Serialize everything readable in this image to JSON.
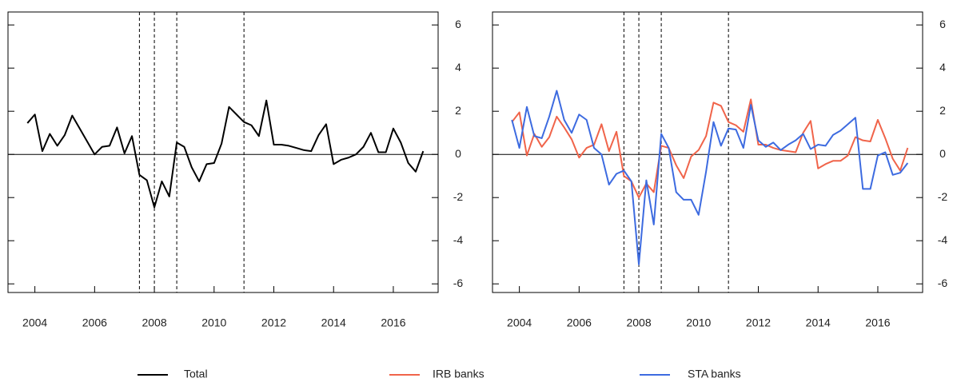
{
  "chart_data": [
    {
      "type": "line",
      "x": [
        2003.75,
        2004,
        2004.25,
        2004.5,
        2004.75,
        2005,
        2005.25,
        2005.5,
        2005.75,
        2006,
        2006.25,
        2006.5,
        2006.75,
        2007,
        2007.25,
        2007.5,
        2007.75,
        2008,
        2008.25,
        2008.5,
        2008.75,
        2009,
        2009.25,
        2009.5,
        2009.75,
        2010,
        2010.25,
        2010.5,
        2010.75,
        2011,
        2011.25,
        2011.5,
        2011.75,
        2012,
        2012.25,
        2012.5,
        2012.75,
        2013,
        2013.25,
        2013.5,
        2013.75,
        2014,
        2014.25,
        2014.5,
        2014.75,
        2015,
        2015.25,
        2015.5,
        2015.75,
        2016,
        2016.25,
        2016.5,
        2016.75,
        2017
      ],
      "series": [
        {
          "name": "Total",
          "color": "#000000",
          "values": [
            1.45,
            1.85,
            0.15,
            0.95,
            0.4,
            0.9,
            1.8,
            1.2,
            0.6,
            0.0,
            0.35,
            0.4,
            1.25,
            0.05,
            0.85,
            -0.95,
            -1.2,
            -2.45,
            -1.25,
            -1.95,
            0.55,
            0.35,
            -0.6,
            -1.25,
            -0.45,
            -0.4,
            0.5,
            2.2,
            1.85,
            1.5,
            1.35,
            0.85,
            2.5,
            0.45,
            0.45,
            0.4,
            0.3,
            0.2,
            0.15,
            0.9,
            1.4,
            -0.45,
            -0.25,
            -0.15,
            0.0,
            0.35,
            1.0,
            0.1,
            0.1,
            1.2,
            0.55,
            -0.4,
            -0.8,
            0.15
          ]
        }
      ],
      "xlim": [
        2003.1,
        2017.5
      ],
      "ylim": [
        -6.4,
        6.6
      ],
      "xticks": [
        2004,
        2006,
        2008,
        2010,
        2012,
        2014,
        2016
      ],
      "yticks": [
        -6,
        -4,
        -2,
        0,
        2,
        4,
        6
      ],
      "vlines": [
        2007.5,
        2008.0,
        2008.75,
        2011.0
      ],
      "hlines": [
        0
      ]
    },
    {
      "type": "line",
      "x": [
        2003.75,
        2004,
        2004.25,
        2004.5,
        2004.75,
        2005,
        2005.25,
        2005.5,
        2005.75,
        2006,
        2006.25,
        2006.5,
        2006.75,
        2007,
        2007.25,
        2007.5,
        2007.75,
        2008,
        2008.25,
        2008.5,
        2008.75,
        2009,
        2009.25,
        2009.5,
        2009.75,
        2010,
        2010.25,
        2010.5,
        2010.75,
        2011,
        2011.25,
        2011.5,
        2011.75,
        2012,
        2012.25,
        2012.5,
        2012.75,
        2013,
        2013.25,
        2013.5,
        2013.75,
        2014,
        2014.25,
        2014.5,
        2014.75,
        2015,
        2015.25,
        2015.5,
        2015.75,
        2016,
        2016.25,
        2016.5,
        2016.75,
        2017
      ],
      "series": [
        {
          "name": "IRB banks",
          "color": "#f0644a",
          "values": [
            1.5,
            1.95,
            -0.05,
            0.95,
            0.35,
            0.8,
            1.75,
            1.25,
            0.7,
            -0.15,
            0.3,
            0.45,
            1.4,
            0.15,
            1.05,
            -1.0,
            -1.25,
            -2.0,
            -1.35,
            -1.75,
            0.4,
            0.3,
            -0.5,
            -1.1,
            -0.1,
            0.2,
            0.85,
            2.4,
            2.25,
            1.5,
            1.35,
            1.05,
            2.55,
            0.45,
            0.45,
            0.3,
            0.2,
            0.15,
            0.1,
            1.0,
            1.55,
            -0.65,
            -0.45,
            -0.3,
            -0.3,
            -0.05,
            0.8,
            0.65,
            0.6,
            1.6,
            0.75,
            -0.2,
            -0.75,
            0.3
          ]
        },
        {
          "name": "STA banks",
          "color": "#3d6be0",
          "values": [
            1.6,
            0.3,
            2.2,
            0.85,
            0.75,
            1.75,
            2.95,
            1.6,
            1.0,
            1.85,
            1.6,
            0.3,
            0.0,
            -1.4,
            -0.9,
            -0.75,
            -1.25,
            -5.1,
            -1.2,
            -3.25,
            0.95,
            0.3,
            -1.75,
            -2.1,
            -2.1,
            -2.8,
            -0.8,
            1.5,
            0.4,
            1.2,
            1.15,
            0.3,
            2.3,
            0.65,
            0.35,
            0.55,
            0.2,
            0.45,
            0.65,
            0.95,
            0.25,
            0.45,
            0.4,
            0.9,
            1.1,
            1.4,
            1.7,
            -1.6,
            -1.6,
            -0.05,
            0.1,
            -0.95,
            -0.85,
            -0.4
          ]
        }
      ],
      "xlim": [
        2003.1,
        2017.5
      ],
      "ylim": [
        -6.4,
        6.6
      ],
      "xticks": [
        2004,
        2006,
        2008,
        2010,
        2012,
        2014,
        2016
      ],
      "yticks": [
        -6,
        -4,
        -2,
        0,
        2,
        4,
        6
      ],
      "vlines": [
        2007.5,
        2008.0,
        2008.75,
        2011.0
      ],
      "hlines": [
        0
      ]
    }
  ]
}
